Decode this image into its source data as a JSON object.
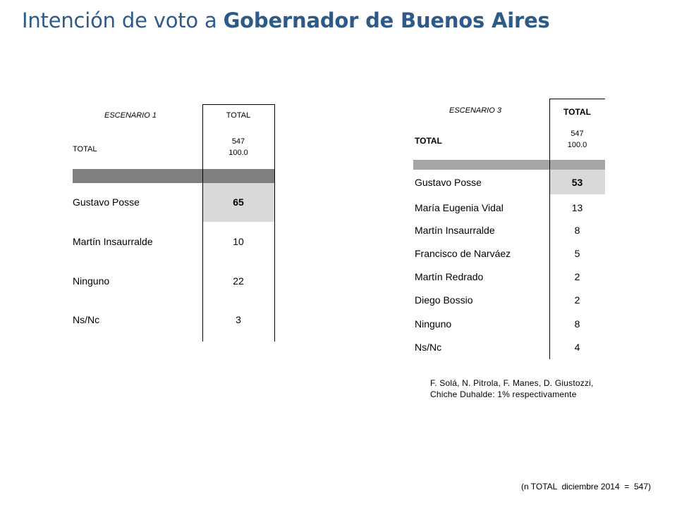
{
  "title": {
    "prefix": "Intención de voto a ",
    "bold": "Gobernador de Buenos Aires"
  },
  "scenario1": {
    "scenario_label": "ESCENARIO 1",
    "total_header": "TOTAL",
    "total_row_label": "TOTAL",
    "base_n": "547",
    "base_pct": "100.0",
    "rows": [
      {
        "name": "Gustavo Posse",
        "value": "65"
      },
      {
        "name": "Martín Insaurralde",
        "value": "10"
      },
      {
        "name": "Ninguno",
        "value": "22"
      },
      {
        "name": "Ns/Nc",
        "value": "3"
      }
    ]
  },
  "scenario3": {
    "scenario_label": "ESCENARIO 3",
    "total_header": "TOTAL",
    "total_row_label": "TOTAL",
    "base_n": "547",
    "base_pct": "100.0",
    "rows": [
      {
        "name": "Gustavo Posse",
        "value": "53"
      },
      {
        "name": "María Eugenia Vidal",
        "value": "13"
      },
      {
        "name": "Martín Insaurralde",
        "value": "8"
      },
      {
        "name": "Francisco de Narváez",
        "value": "5"
      },
      {
        "name": "Martín Redrado",
        "value": "2"
      },
      {
        "name": "Diego Bossio",
        "value": "2"
      },
      {
        "name": "Ninguno",
        "value": "8"
      },
      {
        "name": "Ns/Nc",
        "value": "4"
      }
    ],
    "note_line1": "F. Solá, N. Pitrola, F. Manes, D. Giustozzi,",
    "note_line2": "Chiche Duhalde: 1%  respectivamente"
  },
  "footnote": "(n TOTAL  diciembre 2014  =  547)",
  "colors": {
    "title": "#2e5a8a",
    "header_bar_1": "#7f7f7f",
    "header_bar_3": "#a6a6a6",
    "highlight": "#d9d9d9"
  }
}
